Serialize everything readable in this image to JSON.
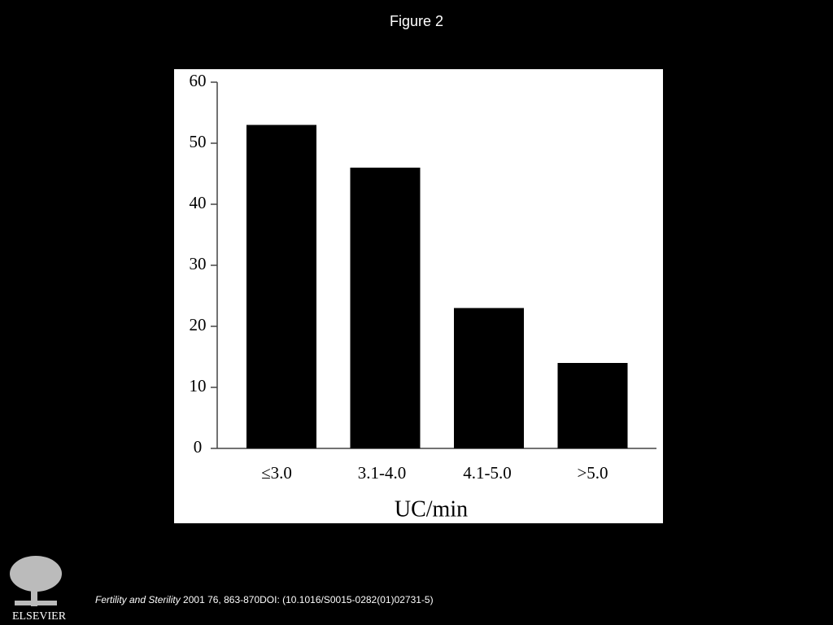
{
  "slide_title": "Figure 2",
  "citation": {
    "journal": "Fertility and Sterility",
    "details": "2001 76, 863-870DOI: (10.1016/S0015-0282(01)02731-5)"
  },
  "logo": "ELSEVIER",
  "chart_data": {
    "type": "bar",
    "x_label": "UC/min",
    "categories": [
      "≤3.0",
      "3.1-4.0",
      "4.1-5.0",
      ">5.0"
    ],
    "values": [
      53,
      46,
      23,
      14
    ],
    "color": "#000000",
    "ylim": [
      0,
      60
    ],
    "yticks": [
      0,
      10,
      20,
      30,
      40,
      50,
      60
    ],
    "grid": false
  }
}
